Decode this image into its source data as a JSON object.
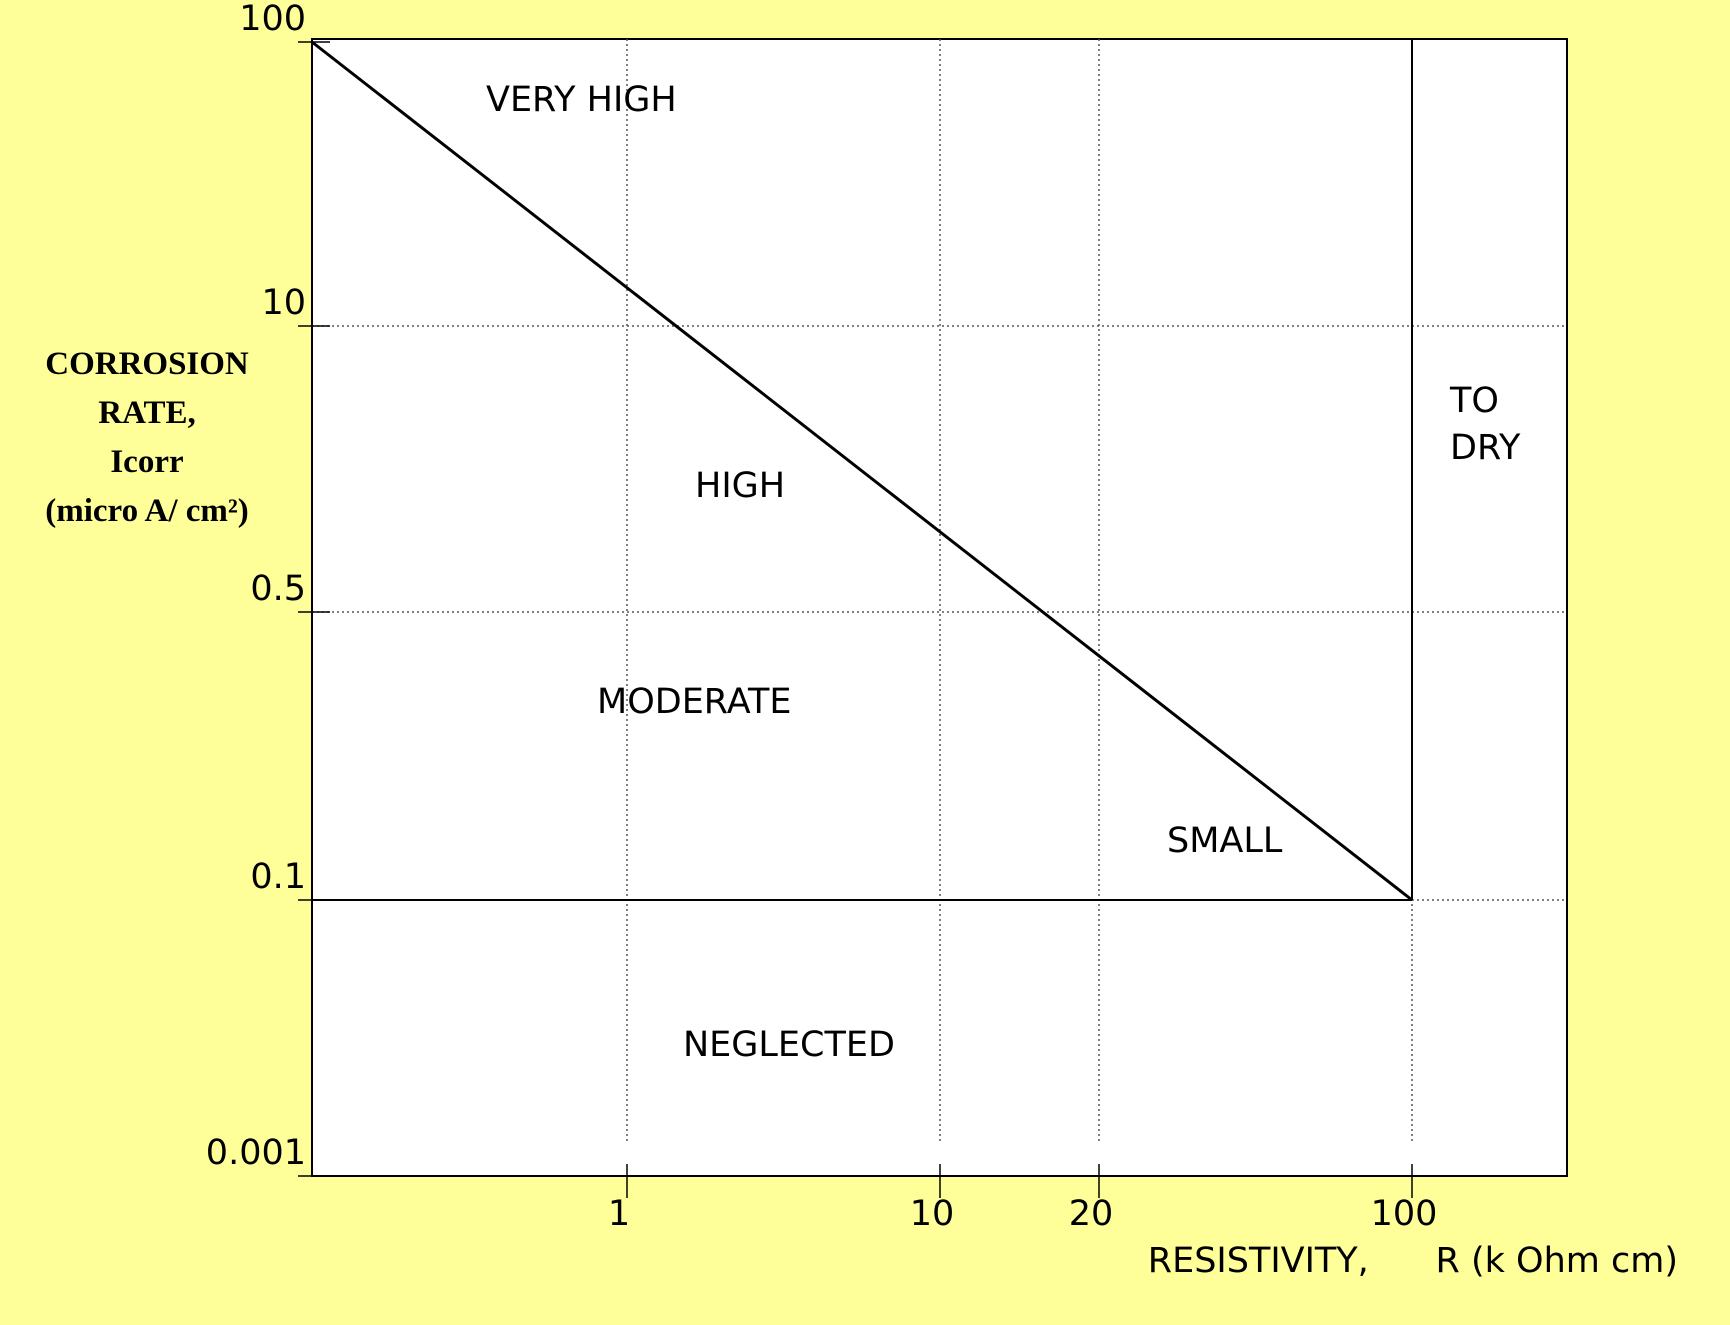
{
  "chart_data": {
    "type": "line",
    "ylabel": [
      "CORROSION",
      "RATE,",
      "Icorr",
      "(micro A/ cm²)"
    ],
    "xlabel": "RESISTIVITY,      R (k Ohm cm)",
    "x": [
      0.1,
      100
    ],
    "values": [
      100,
      0.1
    ],
    "color": "#000000",
    "xlim": [
      0.1,
      200
    ],
    "xticks": [
      1,
      10,
      20,
      100
    ],
    "xscale": "log",
    "ylim": [
      0.001,
      100
    ],
    "yticks": [
      100,
      10,
      0.5,
      0.1,
      0.001
    ],
    "yscale": "log",
    "grid": true,
    "annotations": [
      "VERY HIGH",
      "HIGH",
      "MODERATE",
      "SMALL",
      "NEGLECTED",
      "TO DRY"
    ]
  }
}
